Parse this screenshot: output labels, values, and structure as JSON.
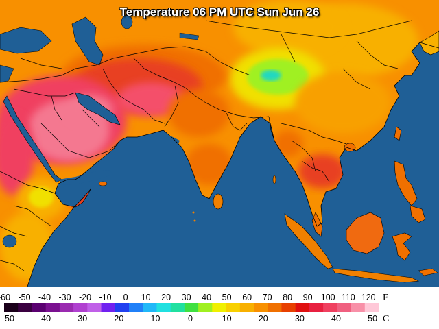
{
  "title": "Temperature 06 PM UTC Sun Jun 26",
  "legend": {
    "fahrenheit_unit": "F",
    "celsius_unit": "C",
    "fahrenheit_ticks": [
      "-60",
      "-50",
      "-40",
      "-30",
      "-20",
      "-10",
      "0",
      "10",
      "20",
      "30",
      "40",
      "50",
      "60",
      "70",
      "80",
      "90",
      "100",
      "110",
      "120"
    ],
    "celsius_ticks": [
      "-50",
      "-40",
      "-30",
      "-20",
      "-10",
      "0",
      "10",
      "20",
      "30",
      "40",
      "50"
    ],
    "colors": [
      "#1a001a",
      "#3a0040",
      "#5a0070",
      "#7a1090",
      "#9a2ab0",
      "#b040d0",
      "#c060e8",
      "#7020f0",
      "#2040f0",
      "#2080f8",
      "#20b8f8",
      "#20e0e0",
      "#20e0a0",
      "#40e040",
      "#a0f020",
      "#f0f000",
      "#f8d000",
      "#f8b000",
      "#f89000",
      "#f07000",
      "#e84000",
      "#e01010",
      "#e82040",
      "#f04060",
      "#f06080",
      "#f890a8",
      "#ffc8d8"
    ],
    "colors_note": "color bar from -60F to 125F"
  },
  "map": {
    "ocean_color": "#1f5f96",
    "land_colors": {
      "hot": "#f4506a",
      "very_hot": "#f47890",
      "warm": "#f07000",
      "orange": "#f89000",
      "yellow_orange": "#f8b000",
      "yellow": "#f0e000",
      "green": "#80e020",
      "cyan": "#20d0e0"
    }
  }
}
